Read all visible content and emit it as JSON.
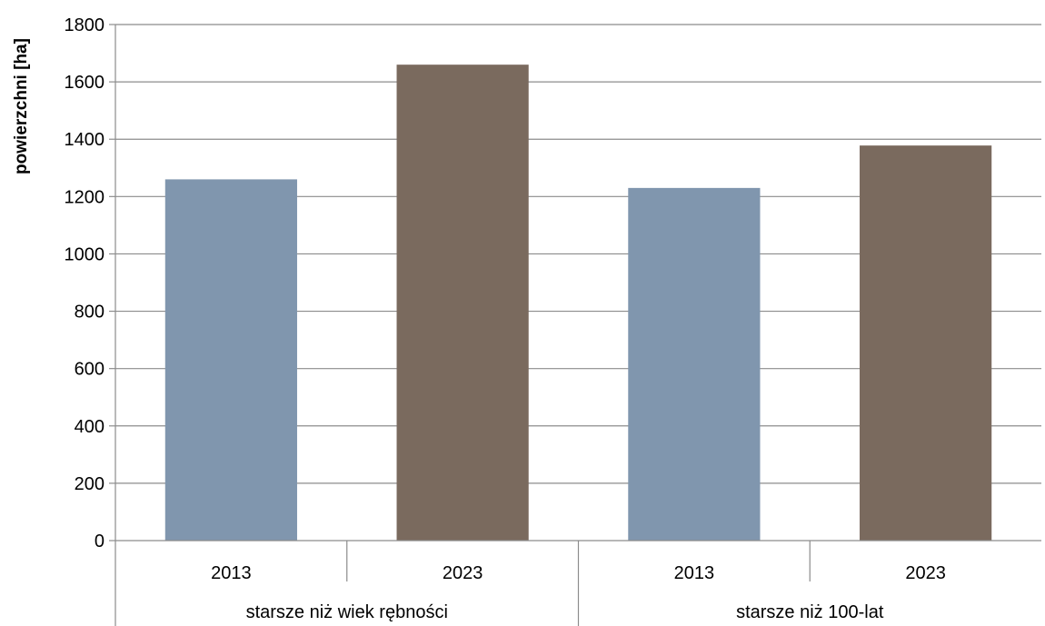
{
  "chart_data": {
    "type": "bar",
    "title": "",
    "xlabel": "",
    "ylabel": "powierzchni [ha]",
    "ylim": [
      0,
      1800
    ],
    "yticks": [
      0,
      200,
      400,
      600,
      800,
      1000,
      1200,
      1400,
      1600,
      1800
    ],
    "grid": true,
    "legend": "none",
    "groups": [
      {
        "label": "starsze niż wiek rębności",
        "bars": [
          {
            "category": "2013",
            "value": 1260,
            "color": "#8096ae"
          },
          {
            "category": "2023",
            "value": 1660,
            "color": "#7a6a5e"
          }
        ]
      },
      {
        "label": "starsze niż 100-lat",
        "bars": [
          {
            "category": "2013",
            "value": 1230,
            "color": "#8096ae"
          },
          {
            "category": "2023",
            "value": 1378,
            "color": "#7a6a5e"
          }
        ]
      }
    ]
  }
}
